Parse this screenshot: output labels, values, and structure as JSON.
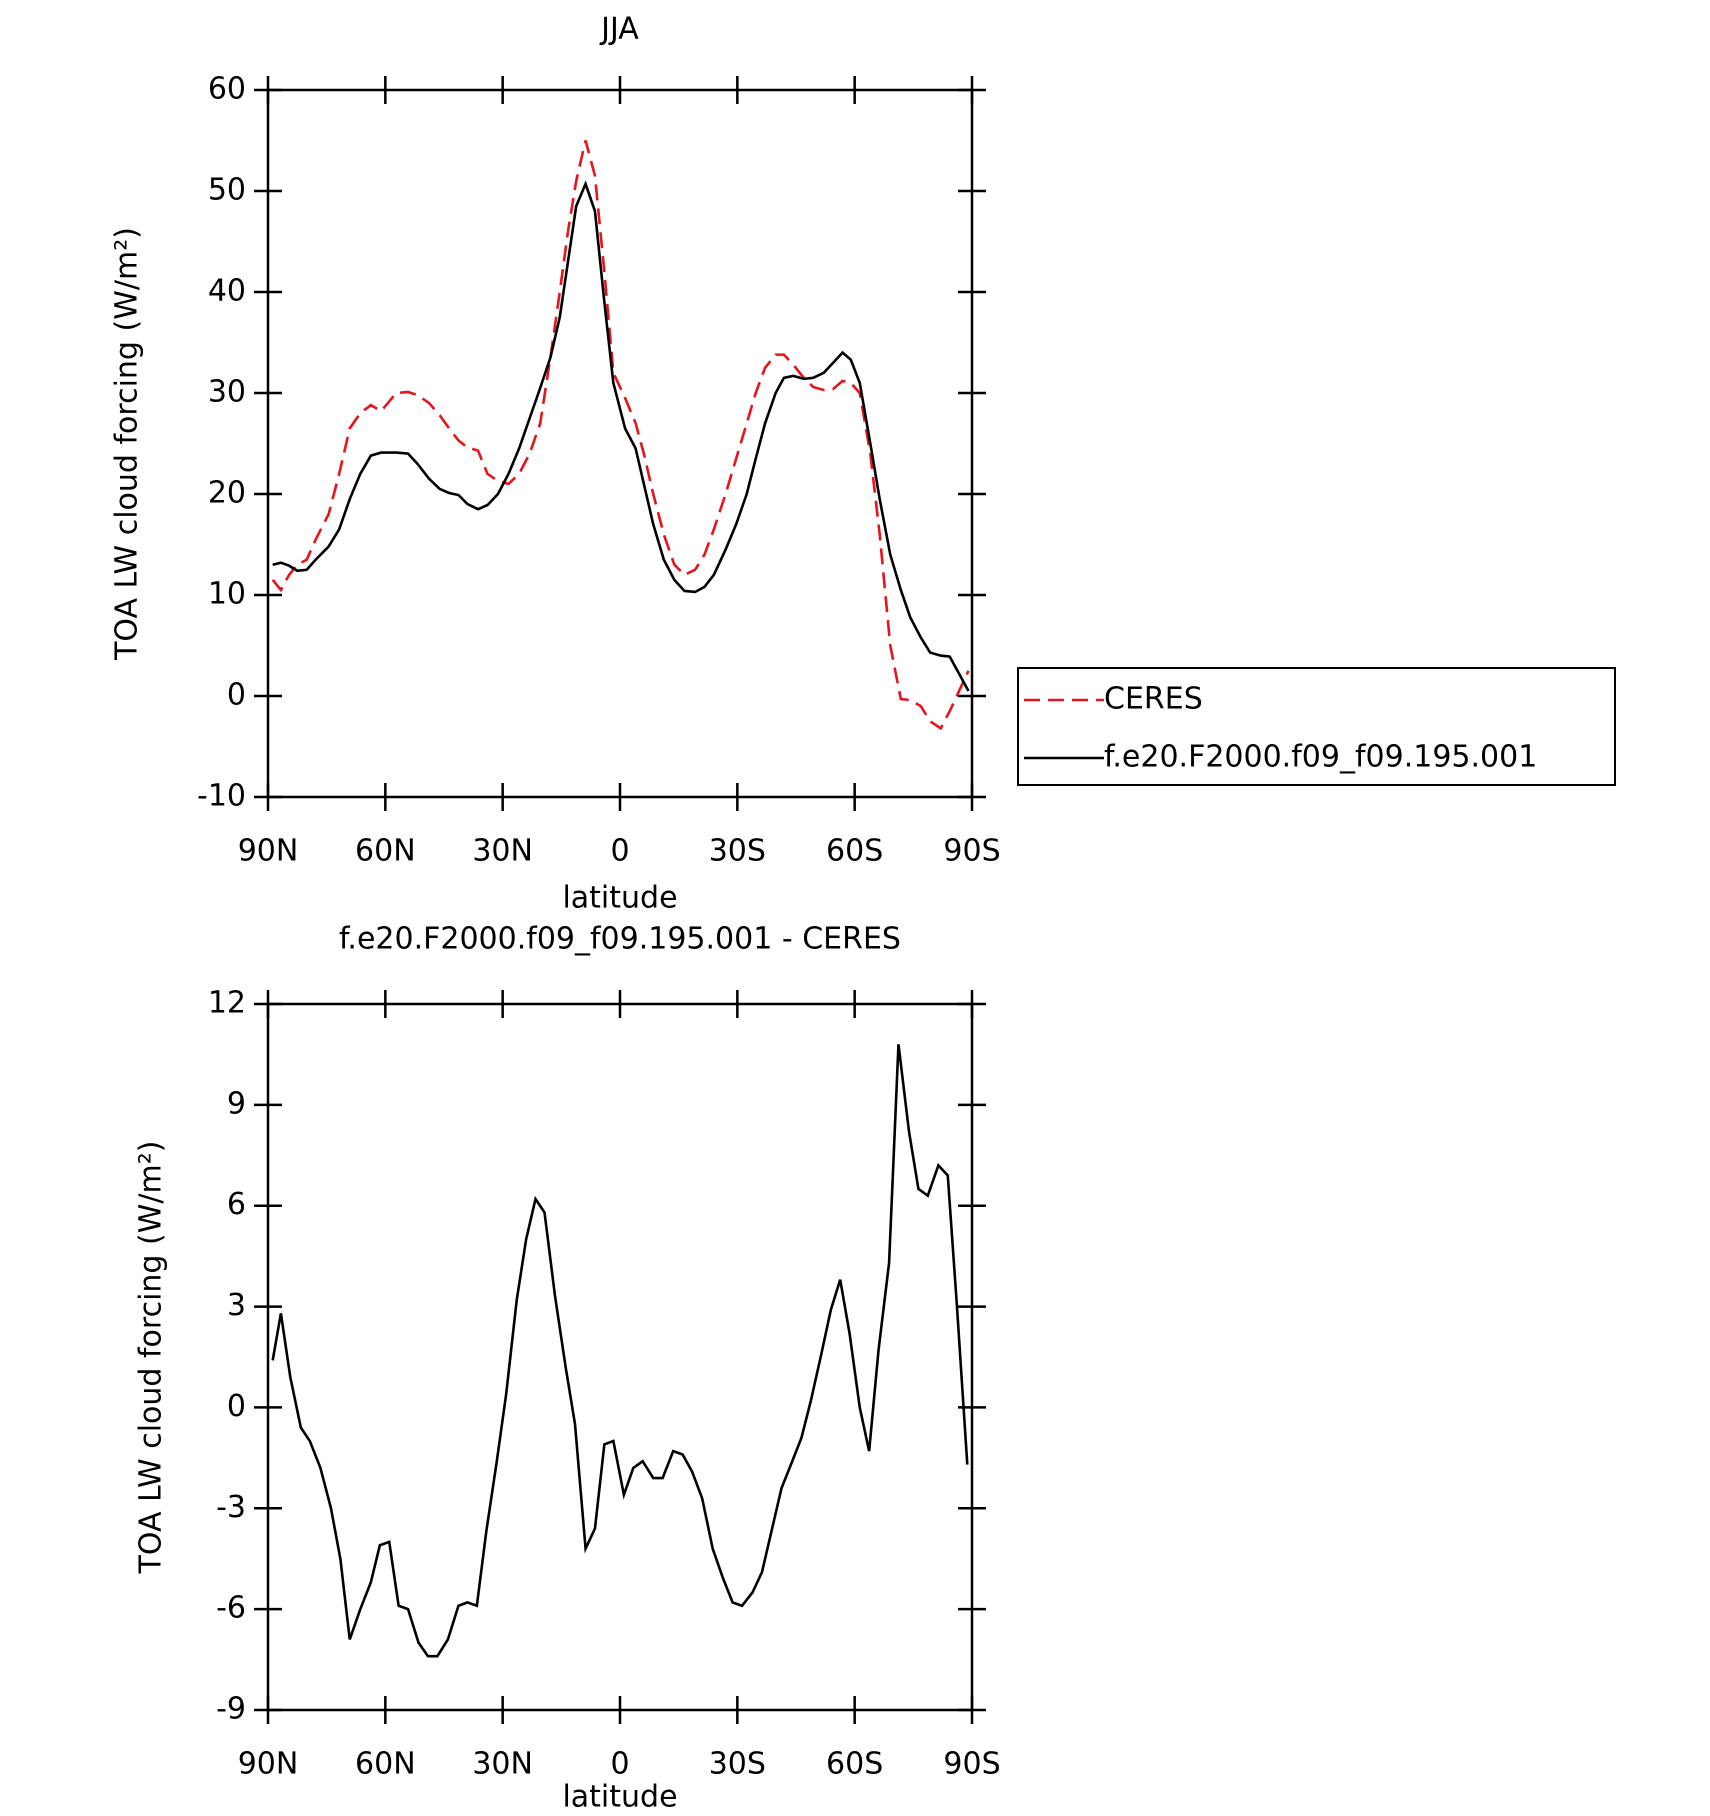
{
  "chart_data": [
    {
      "type": "line",
      "title": "JJA",
      "xlabel": "latitude",
      "ylabel": "TOA LW cloud forcing (W/m²)",
      "x": [
        88.8,
        86.7,
        84.6,
        82.5,
        80.1,
        77.8,
        74.5,
        71.8,
        69.1,
        66.4,
        63.7,
        61.1,
        57.2,
        54.2,
        51.8,
        48.8,
        46.1,
        43.7,
        41.3,
        39.0,
        36.3,
        33.9,
        31.2,
        28.5,
        25.8,
        23.1,
        20.4,
        17.8,
        15.4,
        13.3,
        11.2,
        8.8,
        6.4,
        4.0,
        1.7,
        -1.3,
        -4.0,
        -6.1,
        -8.5,
        -11.2,
        -13.9,
        -16.5,
        -19.2,
        -21.6,
        -24.0,
        -27.0,
        -29.7,
        -32.4,
        -34.7,
        -37.1,
        -39.8,
        -41.9,
        -44.3,
        -47.0,
        -49.4,
        -52.1,
        -54.5,
        -56.9,
        -59.0,
        -61.3,
        -64.0,
        -66.4,
        -69.1,
        -71.8,
        -74.2,
        -76.9,
        -79.3,
        -82.0,
        -84.3,
        -86.7,
        -89.1
      ],
      "series": [
        {
          "name": "CERES",
          "color": "#e8141c",
          "line_style": "dashed",
          "values": [
            11.5,
            10.5,
            12,
            13,
            13.5,
            15.5,
            18,
            22,
            26.5,
            28,
            28.8,
            28.2,
            30.0,
            30.1,
            29.8,
            29,
            27.8,
            26.5,
            25.3,
            24.6,
            24.3,
            22,
            21.3,
            21,
            22,
            24,
            27,
            33.5,
            40,
            46,
            51,
            55,
            51.5,
            42,
            32,
            29.5,
            27,
            24,
            20,
            16,
            13,
            12,
            12.5,
            14,
            16.5,
            20,
            23.5,
            27,
            30,
            32.5,
            33.8,
            33.8,
            32.8,
            31.5,
            30.6,
            30.3,
            30.4,
            31.2,
            31,
            30,
            24,
            16,
            5,
            -0.3,
            -0.4,
            -1,
            -2.5,
            -3.2,
            -1.5,
            0.5,
            2.5
          ]
        },
        {
          "name": "f.e20.F2000.f09_f09.195.001",
          "color": "#000000",
          "line_style": "solid",
          "values": [
            13,
            13.2,
            12.9,
            12.4,
            12.5,
            13.5,
            14.8,
            16.5,
            19.5,
            22,
            23.8,
            24.1,
            24.1,
            24,
            23,
            21.5,
            20.5,
            20.1,
            19.9,
            19,
            18.5,
            18.9,
            20,
            22,
            24.5,
            27.5,
            30.5,
            33.5,
            37.5,
            43,
            48.5,
            50.7,
            48,
            39,
            31,
            26.5,
            24.5,
            21,
            17,
            13.5,
            11.5,
            10.4,
            10.3,
            10.8,
            12,
            14.5,
            17,
            20,
            23.5,
            27,
            30,
            31.5,
            31.7,
            31.4,
            31.5,
            32,
            33,
            34,
            33.3,
            31,
            25,
            19.5,
            14,
            10.5,
            7.8,
            5.8,
            4.3,
            4,
            3.9,
            2.2,
            0.5
          ]
        }
      ],
      "xlim": [
        90,
        -90
      ],
      "xticks": [
        {
          "value": 90,
          "label": "90N"
        },
        {
          "value": 60,
          "label": "60N"
        },
        {
          "value": 30,
          "label": "30N"
        },
        0,
        {
          "value": -30,
          "label": "30S"
        },
        {
          "value": -60,
          "label": "60S"
        },
        {
          "value": -90,
          "label": "90S"
        }
      ],
      "ylim": [
        -10,
        60
      ],
      "yticks": [
        -10,
        0,
        10,
        20,
        30,
        40,
        50,
        60
      ],
      "legend": "right"
    },
    {
      "type": "line",
      "title": "f.e20.F2000.f09_f09.195.001 - CERES",
      "xlabel": "latitude",
      "ylabel": "TOA LW cloud forcing (W/m²)",
      "x": [
        88.8,
        86.7,
        84.3,
        81.6,
        79.3,
        76.6,
        73.9,
        71.5,
        69.1,
        66.4,
        63.7,
        61.4,
        59.0,
        56.6,
        54.2,
        51.5,
        49.1,
        46.7,
        44.0,
        41.3,
        39.0,
        36.6,
        34.2,
        31.5,
        29.1,
        26.4,
        24.0,
        21.6,
        19.3,
        16.6,
        13.9,
        11.5,
        8.8,
        6.4,
        4.0,
        1.7,
        -1.0,
        -3.4,
        -5.8,
        -8.5,
        -10.9,
        -13.6,
        -16.0,
        -18.4,
        -21.0,
        -23.7,
        -26.4,
        -28.8,
        -31.2,
        -33.9,
        -36.3,
        -38.7,
        -41.3,
        -43.7,
        -46.4,
        -48.8,
        -51.5,
        -53.9,
        -56.3,
        -58.7,
        -61.3,
        -63.7,
        -66.1,
        -68.8,
        -71.2,
        -73.9,
        -76.3,
        -78.7,
        -81.4,
        -83.8,
        -86.1,
        -88.8
      ],
      "values": [
        1.4,
        2.8,
        0.9,
        -0.6,
        -1.0,
        -1.8,
        -3.0,
        -4.5,
        -6.9,
        -6.0,
        -5.2,
        -4.1,
        -4.0,
        -5.9,
        -6.0,
        -7.0,
        -7.4,
        -7.4,
        -6.9,
        -5.9,
        -5.8,
        -5.9,
        -3.7,
        -1.6,
        0.4,
        3.2,
        5.0,
        6.2,
        5.8,
        3.3,
        1.2,
        -0.5,
        -4.2,
        -3.6,
        -1.1,
        -1.0,
        -2.6,
        -1.8,
        -1.6,
        -2.1,
        -2.1,
        -1.3,
        -1.4,
        -1.9,
        -2.7,
        -4.2,
        -5.1,
        -5.8,
        -5.9,
        -5.5,
        -4.9,
        -3.7,
        -2.4,
        -1.7,
        -0.9,
        0.2,
        1.6,
        2.9,
        3.8,
        2.2,
        0.0,
        -1.3,
        1.7,
        4.3,
        10.8,
        8.2,
        6.5,
        6.3,
        7.2,
        6.9,
        3.1,
        -1.7
      ],
      "color": "#000000",
      "xlim": [
        90,
        -90
      ],
      "xticks": [
        {
          "value": 90,
          "label": "90N"
        },
        {
          "value": 60,
          "label": "60N"
        },
        {
          "value": 30,
          "label": "30N"
        },
        0,
        {
          "value": -30,
          "label": "30S"
        },
        {
          "value": -60,
          "label": "60S"
        },
        {
          "value": -90,
          "label": "90S"
        }
      ],
      "ylim": [
        -9,
        12
      ],
      "yticks": [
        -9,
        -6,
        -3,
        0,
        3,
        6,
        9,
        12
      ]
    }
  ]
}
